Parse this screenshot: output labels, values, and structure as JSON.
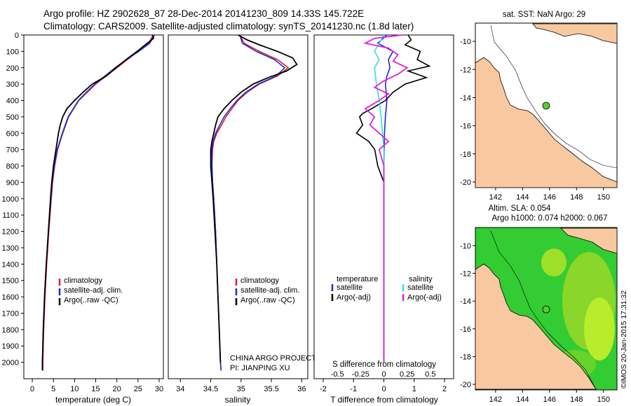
{
  "header": {
    "title_line1": "Argo profile: HZ 2902628_87 28-Dec-2014 20141230_809 14.33S 145.722E",
    "title_line2": "Climatology: CARS2009. Satellite-adjusted climatology: synTS_20141230.nc (1.8d later)"
  },
  "legend1": {
    "items": [
      "climatology",
      "satellite-adj. clim.",
      "Argo(..raw -QC)"
    ]
  },
  "legend2": {
    "items": [
      "climatology",
      "satellite-adj. clim.",
      "Argo(..raw -QC)"
    ]
  },
  "legend3": {
    "temp_head": "temperature",
    "sal_head": "salinity",
    "temp_items": [
      "satellite",
      "Argo(-adj)"
    ],
    "sal_items": [
      "satellite",
      "Argo(-adj)"
    ]
  },
  "project": {
    "line1": "CHINA ARGO PROJECT",
    "line2": "PI: JIANPING XU"
  },
  "maps": {
    "top_title": "sat. SST: NaN Argo: 29",
    "bottom_title1": "Altim. SLA: 0.054",
    "bottom_title2": "Argo h1000: 0.074 h2000: 0.067"
  },
  "credit": "©IMOS 20-Jan-2015 17:31:32",
  "colors": {
    "climatology": "#e02020",
    "satellite": "#1a2bd6",
    "argo": "#000000",
    "sat_sal": "#33dde8",
    "argo_sal": "#e020e0",
    "land": "#f8c8a0",
    "anomaly": "#33cc33"
  },
  "chart_data": [
    {
      "type": "line",
      "xlabel": "temperature (deg C)",
      "ylabel": "",
      "xlim": [
        -2,
        31
      ],
      "ylim": [
        2100,
        0
      ],
      "xticks": [
        0,
        5,
        10,
        15,
        20,
        25,
        30
      ],
      "yticks": [
        0,
        100,
        200,
        300,
        400,
        500,
        600,
        700,
        800,
        900,
        1000,
        1100,
        1200,
        1300,
        1400,
        1500,
        1600,
        1700,
        1800,
        1900,
        2000
      ],
      "series": [
        {
          "name": "climatology",
          "depth": [
            0,
            50,
            100,
            150,
            200,
            250,
            300,
            350,
            400,
            450,
            500,
            600,
            700,
            800,
            900,
            1000,
            1200,
            1400,
            1600,
            1800,
            2000,
            2050
          ],
          "values": [
            28.6,
            27.5,
            25.0,
            22.5,
            20.0,
            17.5,
            15.0,
            13.0,
            11.0,
            9.8,
            8.6,
            7.2,
            6.0,
            5.3,
            4.8,
            4.5,
            3.9,
            3.4,
            3.0,
            2.7,
            2.5,
            2.5
          ]
        },
        {
          "name": "satellite-adj. clim.",
          "depth": [
            0,
            50,
            100,
            150,
            200,
            250,
            300,
            350,
            400,
            450,
            500,
            600,
            700,
            800,
            900,
            1000,
            1200,
            1400,
            1600,
            1800,
            2000,
            2050
          ],
          "values": [
            28.9,
            27.8,
            25.2,
            22.3,
            19.6,
            17.2,
            14.8,
            12.8,
            10.9,
            9.7,
            8.5,
            7.1,
            5.9,
            5.2,
            4.7,
            4.4,
            3.8,
            3.3,
            2.9,
            2.6,
            2.4,
            2.4
          ]
        },
        {
          "name": "Argo(..raw -QC)",
          "depth": [
            0,
            20,
            50,
            100,
            150,
            200,
            250,
            300,
            350,
            400,
            450,
            500,
            550,
            600,
            700,
            800,
            900,
            1000,
            1200,
            1400,
            1600,
            1800,
            2000,
            2050
          ],
          "values": [
            28.4,
            28.7,
            27.2,
            24.8,
            22.2,
            19.8,
            17.5,
            14.2,
            12.0,
            10.0,
            8.2,
            7.2,
            6.6,
            6.2,
            5.6,
            5.0,
            4.6,
            4.3,
            3.8,
            3.3,
            2.9,
            2.6,
            2.4,
            2.4
          ]
        }
      ]
    },
    {
      "type": "line",
      "xlabel": "salinity",
      "xlim": [
        33.8,
        36.1
      ],
      "ylim": [
        2100,
        0
      ],
      "xticks": [
        34,
        34.5,
        35,
        35.5,
        36
      ],
      "series": [
        {
          "name": "climatology",
          "depth": [
            0,
            50,
            100,
            150,
            200,
            250,
            300,
            350,
            400,
            450,
            500,
            550,
            600,
            650,
            700,
            800,
            900,
            1000,
            1200,
            1400,
            1600,
            1800,
            2000,
            2050
          ],
          "values": [
            34.98,
            35.05,
            35.3,
            35.6,
            35.78,
            35.6,
            35.3,
            35.1,
            34.95,
            34.85,
            34.75,
            34.68,
            34.6,
            34.55,
            34.53,
            34.52,
            34.53,
            34.55,
            34.58,
            34.6,
            34.62,
            34.64,
            34.66,
            34.67
          ]
        },
        {
          "name": "satellite-adj. clim.",
          "depth": [
            0,
            50,
            100,
            150,
            200,
            250,
            300,
            350,
            400,
            450,
            500,
            550,
            600,
            650,
            700,
            800,
            900,
            1000,
            1200,
            1400,
            1600,
            1800,
            2000,
            2050
          ],
          "values": [
            34.98,
            35.02,
            35.25,
            35.55,
            35.72,
            35.58,
            35.28,
            35.08,
            34.93,
            34.82,
            34.72,
            34.65,
            34.58,
            34.54,
            34.52,
            34.52,
            34.53,
            34.55,
            34.58,
            34.6,
            34.62,
            34.64,
            34.66,
            34.67
          ]
        },
        {
          "name": "Argo(..raw -QC)",
          "depth": [
            0,
            30,
            60,
            100,
            140,
            180,
            220,
            260,
            300,
            350,
            400,
            450,
            500,
            550,
            600,
            650,
            700,
            800,
            900,
            1000,
            1200,
            1400,
            1600,
            1800,
            2000
          ],
          "values": [
            34.95,
            35.1,
            35.3,
            35.6,
            35.85,
            35.92,
            35.75,
            35.45,
            35.2,
            35.0,
            34.85,
            34.72,
            34.62,
            34.58,
            34.55,
            34.52,
            34.5,
            34.5,
            34.52,
            34.54,
            34.57,
            34.6,
            34.62,
            34.64,
            34.66
          ]
        }
      ]
    },
    {
      "type": "line",
      "xlabel_top": "S difference from climatology",
      "xlabel": "T difference from climatology",
      "xlim": [
        -2.3,
        2.3
      ],
      "ylim": [
        2100,
        0
      ],
      "xticks": [
        -2,
        -1,
        0,
        1,
        2
      ],
      "sticks": [
        -0.5,
        -0.25,
        0,
        0.25,
        0.5
      ],
      "series": [
        {
          "name": "satellite",
          "kind": "T",
          "depth": [
            0,
            50,
            100,
            150,
            200,
            250,
            300,
            400,
            500,
            600,
            800,
            1000,
            1500,
            2000
          ],
          "values": [
            0.1,
            -0.2,
            0.3,
            0.15,
            0.2,
            0.1,
            0.05,
            0.1,
            0.05,
            0.02,
            0.0,
            0.0,
            0.0,
            0.0
          ]
        },
        {
          "name": "Argo(-adj)",
          "kind": "T",
          "depth": [
            0,
            30,
            60,
            100,
            150,
            190,
            220,
            260,
            300,
            350,
            400,
            450,
            480,
            500,
            550,
            600,
            650,
            700,
            800,
            850,
            900,
            1000,
            1200,
            1500,
            1800,
            2000
          ],
          "values": [
            0.8,
            0.9,
            0.7,
            1.2,
            1.1,
            1.5,
            0.8,
            1.4,
            0.7,
            0.3,
            0.05,
            -0.4,
            -0.7,
            -0.8,
            -0.7,
            -0.9,
            -0.5,
            -0.3,
            -0.2,
            -0.1,
            0.0,
            0.0,
            0.0,
            0.0,
            0.0,
            0.0
          ]
        },
        {
          "name": "satellite",
          "kind": "S",
          "depth": [
            0,
            50,
            100,
            150,
            200,
            300,
            400,
            500,
            700,
            1000,
            1500,
            2000
          ],
          "values": [
            0.0,
            -0.05,
            -0.1,
            -0.05,
            -0.1,
            -0.08,
            -0.05,
            -0.03,
            0.0,
            0.0,
            0.0,
            0.0
          ]
        },
        {
          "name": "Argo(-adj)",
          "kind": "S",
          "depth": [
            0,
            20,
            50,
            80,
            120,
            160,
            200,
            240,
            280,
            320,
            360,
            400,
            450,
            500,
            550,
            600,
            650,
            700,
            800,
            1000,
            1500,
            2000
          ],
          "values": [
            0.2,
            -0.1,
            -0.2,
            0.05,
            0.15,
            0.1,
            0.25,
            0.15,
            0.0,
            -0.1,
            0.05,
            -0.05,
            -0.2,
            -0.1,
            -0.15,
            -0.05,
            0.05,
            -0.05,
            0.0,
            0.0,
            0.0,
            0.0
          ]
        }
      ]
    },
    {
      "type": "map",
      "title": "sat. SST: NaN Argo: 29",
      "xticks": [
        142,
        144,
        146,
        148,
        150
      ],
      "yticks": [
        -10,
        -12,
        -14,
        -16,
        -18,
        -20
      ],
      "xlim": [
        140.5,
        151
      ],
      "ylim": [
        -20.4,
        -8.7
      ],
      "point": {
        "lon": 145.722,
        "lat": -14.33
      }
    },
    {
      "type": "map",
      "title": "Altim. SLA: 0.054",
      "xticks": [
        142,
        144,
        146,
        148,
        150
      ],
      "yticks": [
        -10,
        -12,
        -14,
        -16,
        -18,
        -20
      ],
      "xlim": [
        140.5,
        151
      ],
      "ylim": [
        -20.4,
        -8.7
      ],
      "point": {
        "lon": 145.722,
        "lat": -14.33
      }
    }
  ]
}
